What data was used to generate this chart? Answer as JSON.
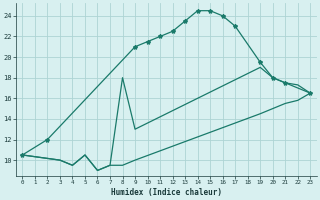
{
  "line1_x": [
    0,
    2,
    9,
    10,
    11,
    12,
    13,
    14,
    15,
    16,
    17,
    19,
    20,
    21,
    23
  ],
  "line1_y": [
    10.5,
    12,
    21,
    21.5,
    22,
    22.5,
    23.5,
    24.5,
    24.5,
    24,
    23,
    19.5,
    18,
    17.5,
    16.5
  ],
  "line2_x": [
    0,
    3,
    4,
    5,
    6,
    7,
    8,
    9,
    19,
    20,
    21,
    22,
    23
  ],
  "line2_y": [
    10.5,
    10,
    9.5,
    10.5,
    9,
    9.5,
    18,
    13,
    19,
    18,
    17.5,
    17.3,
    16.5
  ],
  "line3_x": [
    0,
    3,
    4,
    5,
    6,
    7,
    8,
    9,
    19,
    20,
    21,
    22,
    23
  ],
  "line3_y": [
    10.5,
    10,
    9.5,
    10.5,
    9,
    9.5,
    9.5,
    10,
    14.5,
    15,
    15.5,
    15.8,
    16.5
  ],
  "line_color": "#1a7a6a",
  "bg_color": "#d8f0f0",
  "grid_color": "#aed4d4",
  "xlabel": "Humidex (Indice chaleur)",
  "xlim": [
    -0.5,
    23.5
  ],
  "ylim": [
    8.5,
    25.2
  ],
  "yticks": [
    10,
    12,
    14,
    16,
    18,
    20,
    22,
    24
  ],
  "ytick_labels": [
    "10",
    "12",
    "14",
    "16",
    "18",
    "20",
    "22",
    "24"
  ],
  "xticks": [
    0,
    1,
    2,
    3,
    4,
    5,
    6,
    7,
    8,
    9,
    10,
    11,
    12,
    13,
    14,
    15,
    16,
    17,
    18,
    19,
    20,
    21,
    22,
    23
  ]
}
